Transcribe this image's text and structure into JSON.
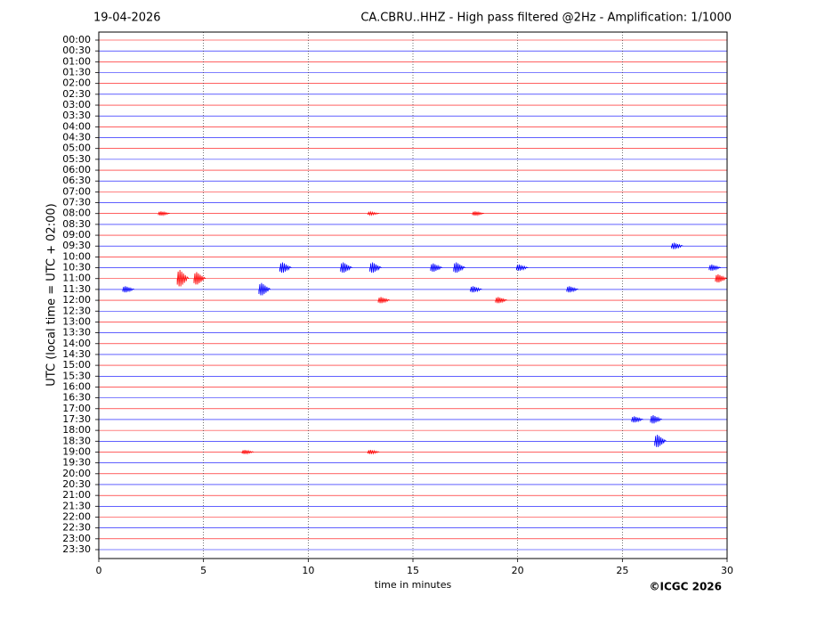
{
  "chart_data": {
    "type": "helicorder",
    "date": "19-04-2026",
    "title": "CA.CBRU..HHZ - High pass filtered @2Hz - Amplification: 1/1000",
    "ylabel": "UTC (local time = UTC + 02:00)",
    "xlabel": "time in minutes",
    "credit": "©ICGC 2026",
    "categories": [
      "00:00",
      "00:30",
      "01:00",
      "01:30",
      "02:00",
      "02:30",
      "03:00",
      "03:30",
      "04:00",
      "04:30",
      "05:00",
      "05:30",
      "06:00",
      "06:30",
      "07:00",
      "07:30",
      "08:00",
      "08:30",
      "09:00",
      "09:30",
      "10:00",
      "10:30",
      "11:00",
      "11:30",
      "12:00",
      "12:30",
      "13:00",
      "13:30",
      "14:00",
      "14:30",
      "15:00",
      "15:30",
      "16:00",
      "16:30",
      "17:00",
      "17:30",
      "18:00",
      "18:30",
      "19:00",
      "19:30",
      "20:00",
      "20:30",
      "21:00",
      "21:30",
      "22:00",
      "22:30",
      "23:00",
      "23:30"
    ],
    "colors": [
      "#ff0000",
      "#0000ff"
    ],
    "xlim": [
      0,
      30
    ],
    "xticks": [
      0,
      5,
      10,
      15,
      20,
      25,
      30
    ],
    "grid": true,
    "events": [
      {
        "row": 16,
        "minute": 3.1,
        "amplitude": 0.2
      },
      {
        "row": 16,
        "minute": 13.1,
        "amplitude": 0.15
      },
      {
        "row": 16,
        "minute": 18.1,
        "amplitude": 0.2
      },
      {
        "row": 19,
        "minute": 27.6,
        "amplitude": 0.3
      },
      {
        "row": 21,
        "minute": 8.9,
        "amplitude": 0.5
      },
      {
        "row": 21,
        "minute": 11.8,
        "amplitude": 0.5
      },
      {
        "row": 21,
        "minute": 13.2,
        "amplitude": 0.5
      },
      {
        "row": 21,
        "minute": 16.1,
        "amplitude": 0.4
      },
      {
        "row": 21,
        "minute": 17.2,
        "amplitude": 0.5
      },
      {
        "row": 21,
        "minute": 20.2,
        "amplitude": 0.3
      },
      {
        "row": 21,
        "minute": 29.4,
        "amplitude": 0.3
      },
      {
        "row": 22,
        "minute": 4.0,
        "amplitude": 0.8
      },
      {
        "row": 22,
        "minute": 4.8,
        "amplitude": 0.6
      },
      {
        "row": 22,
        "minute": 29.7,
        "amplitude": 0.4
      },
      {
        "row": 23,
        "minute": 1.4,
        "amplitude": 0.3
      },
      {
        "row": 23,
        "minute": 7.9,
        "amplitude": 0.6
      },
      {
        "row": 23,
        "minute": 18.0,
        "amplitude": 0.3
      },
      {
        "row": 23,
        "minute": 22.6,
        "amplitude": 0.3
      },
      {
        "row": 24,
        "minute": 13.6,
        "amplitude": 0.3
      },
      {
        "row": 24,
        "minute": 19.2,
        "amplitude": 0.3
      },
      {
        "row": 35,
        "minute": 25.7,
        "amplitude": 0.3
      },
      {
        "row": 35,
        "minute": 26.6,
        "amplitude": 0.4
      },
      {
        "row": 37,
        "minute": 26.8,
        "amplitude": 0.6
      },
      {
        "row": 38,
        "minute": 7.1,
        "amplitude": 0.2
      },
      {
        "row": 38,
        "minute": 13.1,
        "amplitude": 0.2
      }
    ]
  }
}
